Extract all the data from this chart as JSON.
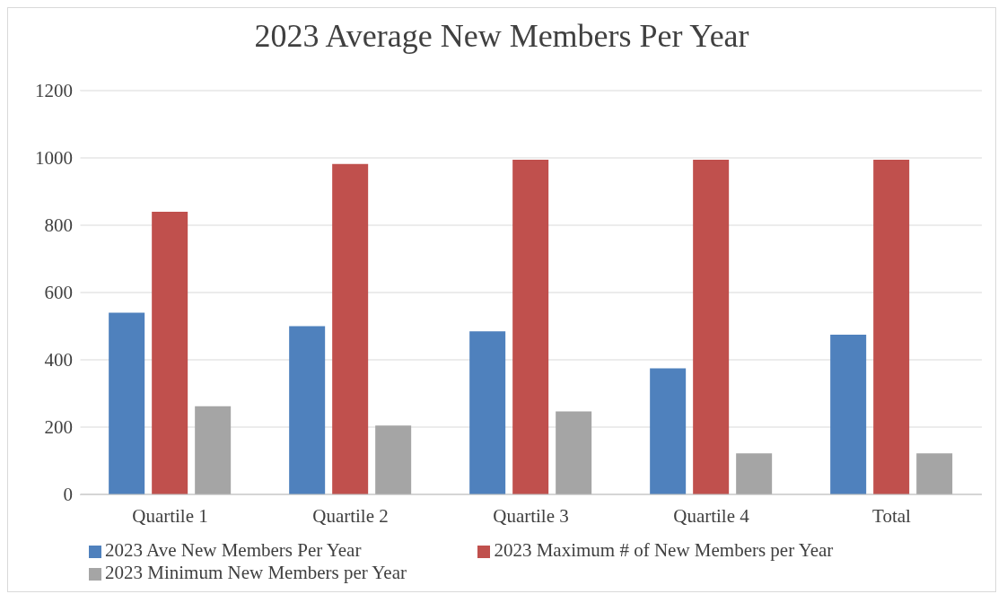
{
  "chart_data": {
    "type": "bar",
    "title": "2023 Average New Members Per Year",
    "categories": [
      "Quartile 1",
      "Quartile 2",
      "Quartile 3",
      "Quartile 4",
      "Total"
    ],
    "series": [
      {
        "name": "2023 Ave New Members Per Year",
        "color": "#4f81bd",
        "values": [
          540,
          500,
          485,
          375,
          475
        ]
      },
      {
        "name": "2023 Maximum # of New Members per Year",
        "color": "#c0504d",
        "values": [
          840,
          982,
          995,
          995,
          995
        ]
      },
      {
        "name": "2023 Minimum New Members per Year",
        "color": "#a5a5a5",
        "values": [
          262,
          205,
          247,
          122,
          122
        ]
      }
    ],
    "ylim": [
      0,
      1200
    ],
    "yticks": [
      0,
      200,
      400,
      600,
      800,
      1000,
      1200
    ],
    "grid": "y",
    "legend": "bottom"
  }
}
